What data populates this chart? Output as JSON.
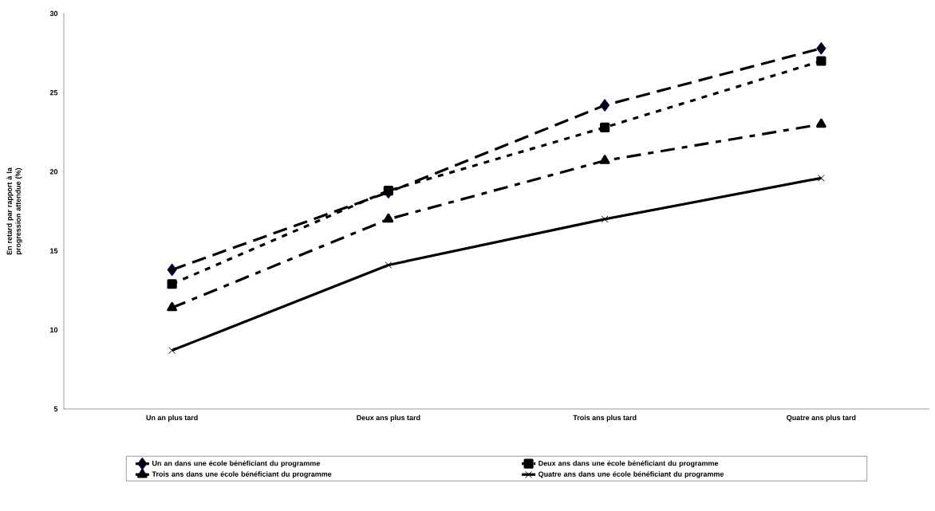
{
  "chart_data": {
    "type": "line",
    "ylabel": "En retard par rapport à la progression attendue (%)",
    "categories": [
      "Un an plus tard",
      "Deux ans plus tard",
      "Trois ans plus tard",
      "Quatre ans plus tard"
    ],
    "ylim": [
      5,
      30
    ],
    "yticks": [
      5,
      10,
      15,
      20,
      25,
      30
    ],
    "grid": false,
    "legend": "bottom",
    "series": [
      {
        "name": "Un an dans une école bénéficiant du programme",
        "color": "#000000",
        "marker": "diamond",
        "line_style": "dashed",
        "values": [
          13.8,
          18.7,
          24.2,
          27.8
        ]
      },
      {
        "name": "Deux ans dans une école bénéficiant du programme",
        "color": "#000000",
        "marker": "square",
        "line_style": "dotted",
        "values": [
          12.9,
          18.8,
          22.8,
          27.0
        ]
      },
      {
        "name": "Trois ans dans une école bénéficiant du programme",
        "color": "#000000",
        "marker": "triangle",
        "line_style": "dashdot",
        "values": [
          11.4,
          17.0,
          20.7,
          23.0
        ]
      },
      {
        "name": "Quatre ans dans une école bénéficiant du programme",
        "color": "#000000",
        "marker": "cross",
        "line_style": "solid",
        "values": [
          8.7,
          14.1,
          17.0,
          19.6
        ]
      }
    ]
  }
}
